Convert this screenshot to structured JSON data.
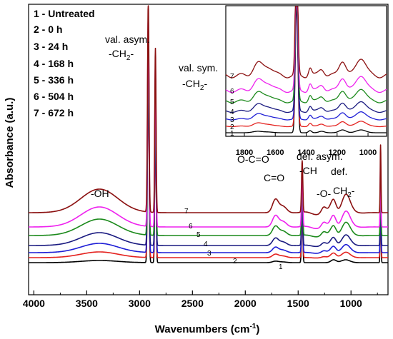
{
  "chart_data": {
    "type": "line",
    "xlabel": "Wavenumbers (cm",
    "xlabel_sup": "-1",
    "xlabel_end": ")",
    "ylabel": "Absorbance (a.u.)",
    "xlim": [
      4050,
      650
    ],
    "x_ticks": [
      4000,
      3500,
      3000,
      2500,
      2000,
      1500,
      1000
    ],
    "legend": [
      "1 -  Untreated",
      "2 - 0 h",
      "3 - 24 h",
      "4 - 168 h",
      "5 - 336 h",
      "6 - 504 h",
      "7 - 672 h"
    ],
    "curve_labels": [
      "1",
      "2",
      "3",
      "4",
      "5",
      "6",
      "7"
    ],
    "series": [
      {
        "label": "1",
        "color": "#000000"
      },
      {
        "label": "2",
        "color": "#e4221f"
      },
      {
        "label": "3",
        "color": "#1f1fd6"
      },
      {
        "label": "4",
        "color": "#1a1a80"
      },
      {
        "label": "5",
        "color": "#1c8a1c"
      },
      {
        "label": "6",
        "color": "#ee22ee"
      },
      {
        "label": "7",
        "color": "#8b1010"
      }
    ],
    "annotations": {
      "oh": "-OH",
      "ch2_asym_1": "val. asym.",
      "ch2_asym_2": "-CH",
      "ch2_asym_sub": "2",
      "ch2_asym_end": "-",
      "ch2_sym_1": "val. sym.",
      "ch2_sym_2": "-CH",
      "ch2_sym_sub": "2",
      "ch2_sym_end": "-",
      "oco": "O-C=O",
      "co": "C=O",
      "def_asym_1": "def. asym.",
      "def_asym_2": "-CH",
      "def_1": "def.",
      "def_2": "-O-",
      "def_3": "CH",
      "def_3_sub": "2",
      "def_3_end": "-"
    },
    "inset": {
      "xlim": [
        1920,
        880
      ],
      "x_ticks": [
        1800,
        1600,
        1400,
        1200,
        1000
      ],
      "curve_labels": [
        "1",
        "2",
        "3",
        "4",
        "5",
        "6",
        "7"
      ]
    }
  }
}
